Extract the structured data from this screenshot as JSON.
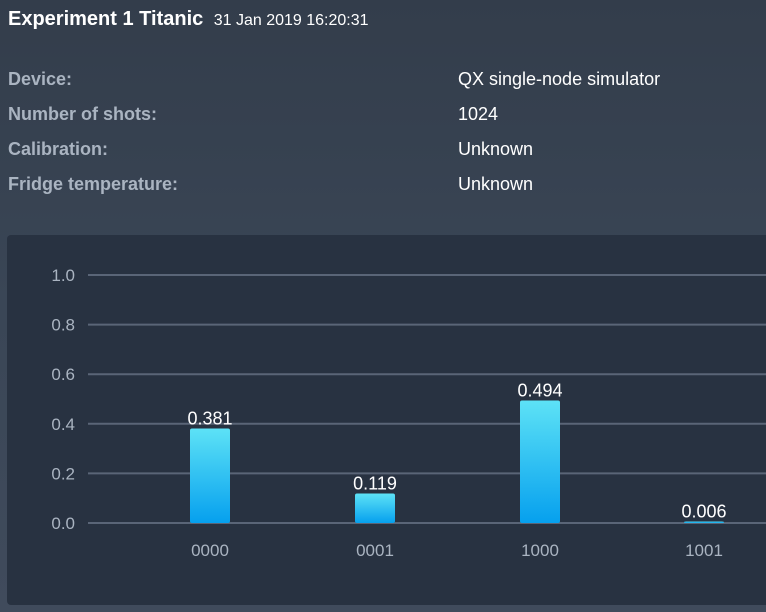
{
  "header": {
    "title": "Experiment 1 Titanic",
    "timestamp": "31 Jan 2019 16:20:31"
  },
  "details": [
    {
      "label": "Device:",
      "value": "QX single-node simulator"
    },
    {
      "label": "Number of shots:",
      "value": "1024"
    },
    {
      "label": "Calibration:",
      "value": "Unknown"
    },
    {
      "label": "Fridge temperature:",
      "value": "Unknown"
    }
  ],
  "colors": {
    "bar_top": "#5de2f6",
    "bar_bottom": "#06a0ee",
    "grid": "#5a6577",
    "tick_label": "#aab4c1",
    "value_label": "#ffffff"
  },
  "chart_data": {
    "type": "bar",
    "categories": [
      "0000",
      "0001",
      "1000",
      "1001"
    ],
    "values": [
      0.381,
      0.119,
      0.494,
      0.006
    ],
    "value_labels": [
      "0.381",
      "0.119",
      "0.494",
      "0.006"
    ],
    "yticks": [
      "0.0",
      "0.2",
      "0.4",
      "0.6",
      "0.8",
      "1.0"
    ],
    "ylim": [
      0,
      1
    ],
    "grid": true
  }
}
